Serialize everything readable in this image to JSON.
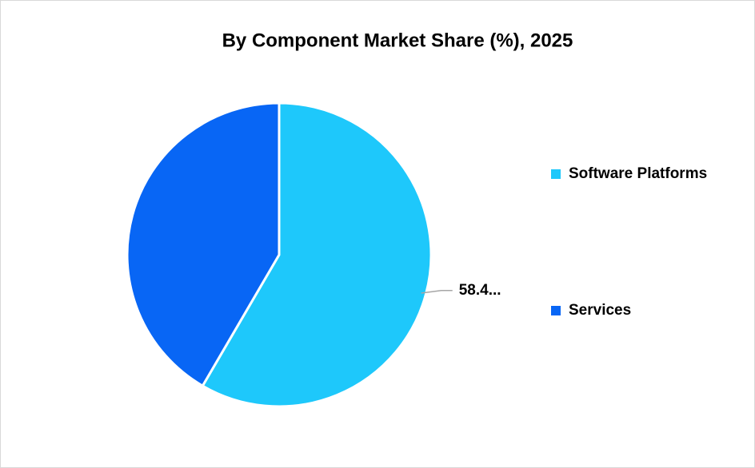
{
  "chart_data": {
    "type": "pie",
    "title": "By Component Market Share (%), 2025",
    "categories": [
      "Software Platforms",
      "Services"
    ],
    "values": [
      58.4,
      41.6
    ],
    "value_labels": [
      "58.4...",
      null
    ],
    "colors": [
      "#1ec8fb",
      "#0866f5"
    ],
    "legend": "right"
  }
}
